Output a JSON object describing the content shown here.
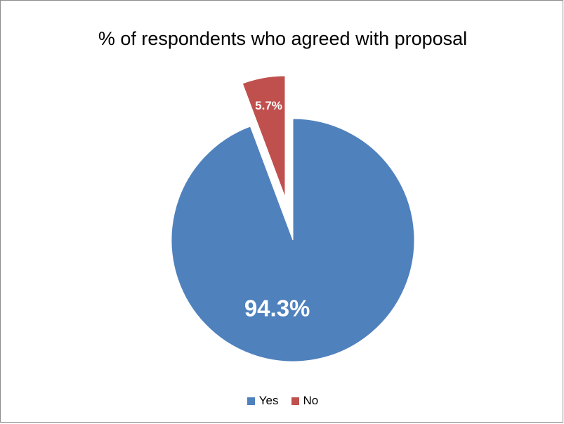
{
  "chart_data": {
    "type": "pie",
    "title": "% of respondents who agreed with proposal",
    "categories": [
      "Yes",
      "No"
    ],
    "values": [
      94.3,
      5.7
    ],
    "data_labels": [
      "94.3%",
      "5.7%"
    ],
    "colors": [
      "#4f81bd",
      "#c0504d"
    ],
    "exploded": [
      "No"
    ],
    "legend_position": "bottom",
    "start_angle_deg": 0,
    "direction": "clockwise"
  }
}
